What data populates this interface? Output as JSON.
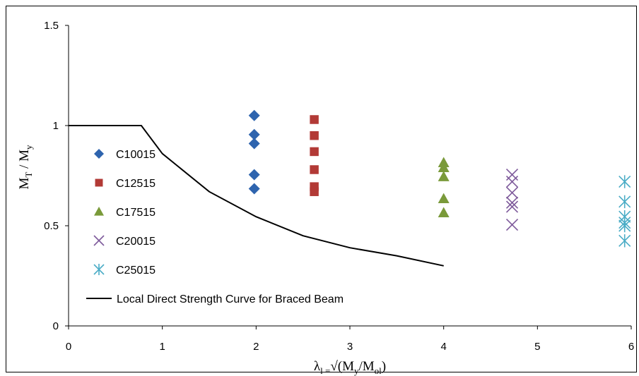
{
  "chart_data": {
    "type": "scatter",
    "xlabel": {
      "parts": [
        {
          "t": "λ",
          "sub": false
        },
        {
          "t": "l =",
          "sub": true
        },
        {
          "t": "√(M",
          "sub": false
        },
        {
          "t": "y",
          "sub": true
        },
        {
          "t": "/M",
          "sub": false
        },
        {
          "t": "ol",
          "sub": true
        },
        {
          "t": ")",
          "sub": false
        }
      ]
    },
    "ylabel": {
      "parts": [
        {
          "t": "M",
          "sub": false
        },
        {
          "t": "T",
          "sub": true
        },
        {
          "t": " / M",
          "sub": false
        },
        {
          "t": "y",
          "sub": true
        }
      ]
    },
    "xlim": [
      0,
      6
    ],
    "ylim": [
      0,
      1.5
    ],
    "x_ticks": [
      "0",
      "1",
      "2",
      "3",
      "4",
      "5",
      "6"
    ],
    "x_tick_values": [
      0,
      1,
      2,
      3,
      4,
      5,
      6
    ],
    "y_ticks": [
      "0",
      "0.5",
      "1",
      "1.5"
    ],
    "y_tick_values": [
      0,
      0.5,
      1,
      1.5
    ],
    "grid": false,
    "legend_position": "left",
    "series": [
      {
        "name": "C10015",
        "marker": "diamond",
        "color": "#2E64AE",
        "points": [
          [
            1.98,
            1.05
          ],
          [
            1.98,
            0.955
          ],
          [
            1.98,
            0.91
          ],
          [
            1.98,
            0.755
          ],
          [
            1.98,
            0.685
          ]
        ]
      },
      {
        "name": "C12515",
        "marker": "square",
        "color": "#B23A36",
        "points": [
          [
            2.62,
            1.03
          ],
          [
            2.62,
            0.95
          ],
          [
            2.62,
            0.87
          ],
          [
            2.62,
            0.78
          ],
          [
            2.62,
            0.695
          ],
          [
            2.62,
            0.67
          ]
        ]
      },
      {
        "name": "C17515",
        "marker": "triangle",
        "color": "#7A9A3A",
        "points": [
          [
            4.0,
            0.815
          ],
          [
            4.0,
            0.79
          ],
          [
            4.0,
            0.745
          ],
          [
            4.0,
            0.635
          ],
          [
            4.0,
            0.565
          ]
        ]
      },
      {
        "name": "C20015",
        "marker": "x",
        "color": "#7E5A9B",
        "points": [
          [
            4.73,
            0.755
          ],
          [
            4.73,
            0.72
          ],
          [
            4.73,
            0.665
          ],
          [
            4.73,
            0.615
          ],
          [
            4.73,
            0.595
          ],
          [
            4.73,
            0.505
          ]
        ]
      },
      {
        "name": "C25015",
        "marker": "asterisk",
        "color": "#4AACC6",
        "points": [
          [
            5.93,
            0.72
          ],
          [
            5.93,
            0.62
          ],
          [
            5.93,
            0.545
          ],
          [
            5.93,
            0.515
          ],
          [
            5.93,
            0.5
          ],
          [
            5.93,
            0.425
          ]
        ]
      },
      {
        "name": "Local Direct Strength Curve for Braced Beam",
        "marker": "line",
        "color": "#000000",
        "points": [
          [
            0,
            1.0
          ],
          [
            0.776,
            1.0
          ],
          [
            1.0,
            0.86
          ],
          [
            1.5,
            0.67
          ],
          [
            2.0,
            0.545
          ],
          [
            2.5,
            0.45
          ],
          [
            3.0,
            0.39
          ],
          [
            3.5,
            0.35
          ],
          [
            4.0,
            0.3
          ]
        ]
      }
    ]
  }
}
